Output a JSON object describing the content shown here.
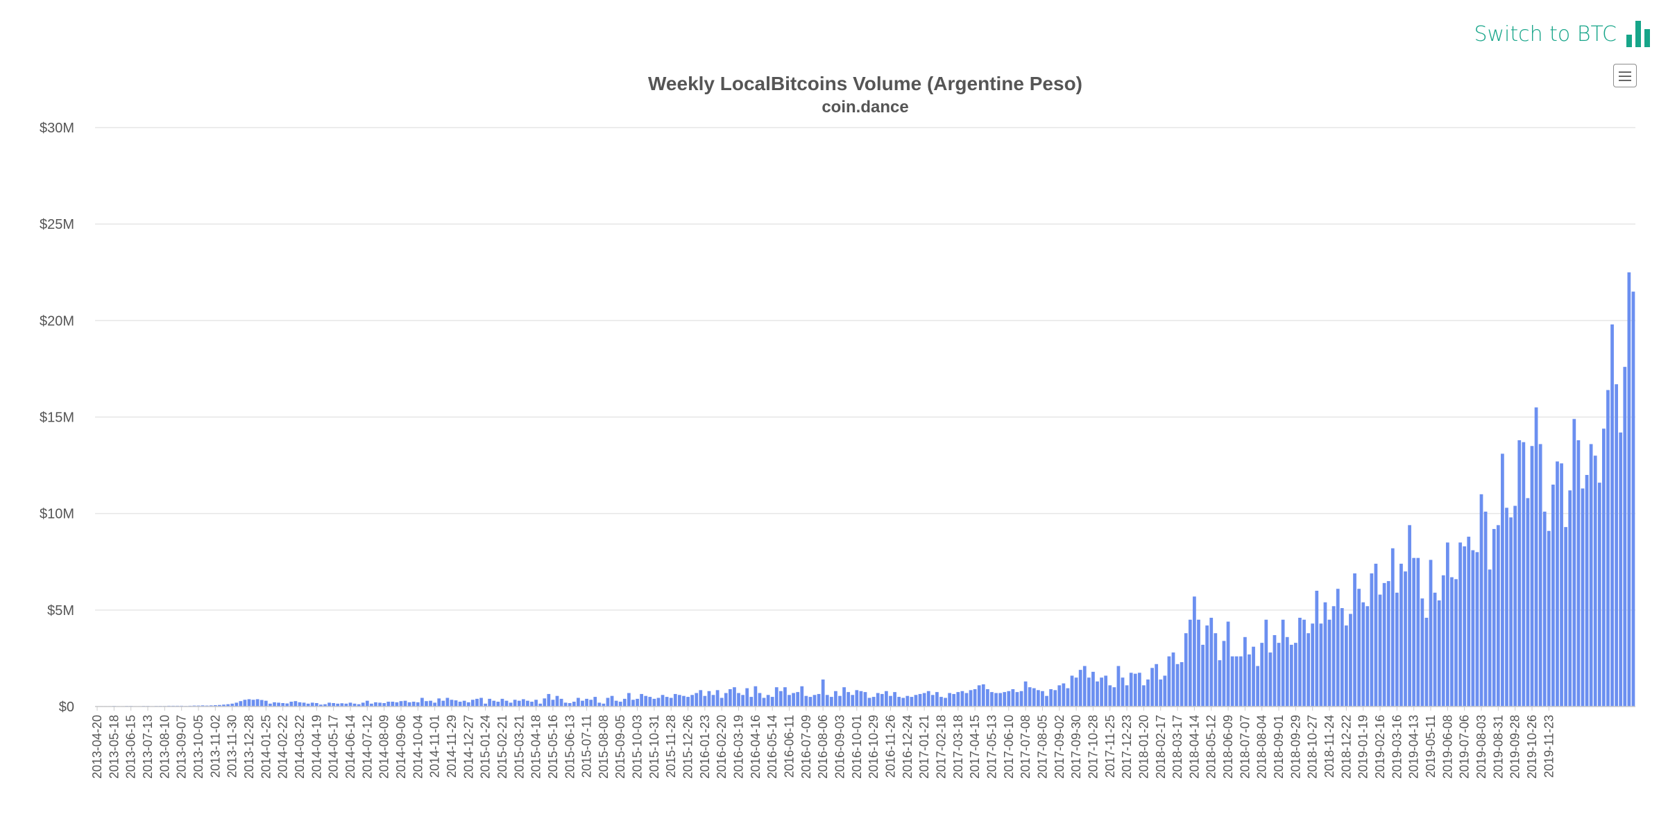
{
  "toolbar": {
    "switch_label": "Switch to BTC",
    "switch_icon": "bar-chart-icon",
    "menu_icon": "hamburger-menu-icon"
  },
  "colors": {
    "bar": "#6b8ff0",
    "accent": "#17a589"
  },
  "chart_data": {
    "type": "bar",
    "title": "Weekly LocalBitcoins Volume (Argentine Peso)",
    "subtitle": "coin.dance",
    "xlabel": "",
    "ylabel": "",
    "ylim": [
      0,
      30
    ],
    "y_unit": "M",
    "y_ticks": [
      "$0",
      "$5M",
      "$10M",
      "$15M",
      "$20M",
      "$25M",
      "$30M"
    ],
    "x_ticks": [
      "2013-04-20",
      "2013-05-18",
      "2013-06-15",
      "2013-07-13",
      "2013-08-10",
      "2013-09-07",
      "2013-10-05",
      "2013-11-02",
      "2013-11-30",
      "2013-12-28",
      "2014-01-25",
      "2014-02-22",
      "2014-03-22",
      "2014-04-19",
      "2014-05-17",
      "2014-06-14",
      "2014-07-12",
      "2014-08-09",
      "2014-09-06",
      "2014-10-04",
      "2014-11-01",
      "2014-11-29",
      "2014-12-27",
      "2015-01-24",
      "2015-02-21",
      "2015-03-21",
      "2015-04-18",
      "2015-05-16",
      "2015-06-13",
      "2015-07-11",
      "2015-08-08",
      "2015-09-05",
      "2015-10-03",
      "2015-10-31",
      "2015-11-28",
      "2015-12-26",
      "2016-01-23",
      "2016-02-20",
      "2016-03-19",
      "2016-04-16",
      "2016-05-14",
      "2016-06-11",
      "2016-07-09",
      "2016-08-06",
      "2016-09-03",
      "2016-10-01",
      "2016-10-29",
      "2016-11-26",
      "2016-12-24",
      "2017-01-21",
      "2017-02-18",
      "2017-03-18",
      "2017-04-15",
      "2017-05-13",
      "2017-06-10",
      "2017-07-08",
      "2017-08-05",
      "2017-09-02",
      "2017-09-30",
      "2017-10-28",
      "2017-11-25",
      "2017-12-23",
      "2018-01-20",
      "2018-02-17",
      "2018-03-17",
      "2018-04-14",
      "2018-05-12",
      "2018-06-09",
      "2018-07-07",
      "2018-08-04",
      "2018-09-01",
      "2018-09-29",
      "2018-10-27",
      "2018-11-24",
      "2018-12-22",
      "2019-01-19",
      "2019-02-16",
      "2019-03-16",
      "2019-04-13",
      "2019-05-11",
      "2019-06-08",
      "2019-07-06",
      "2019-08-03",
      "2019-08-31",
      "2019-09-28",
      "2019-10-26",
      "2019-11-23"
    ],
    "values": [
      0.02,
      0.02,
      0.02,
      0.02,
      0.03,
      0.02,
      0.02,
      0.03,
      0.03,
      0.02,
      0.02,
      0.03,
      0.03,
      0.02,
      0.03,
      0.03,
      0.03,
      0.04,
      0.04,
      0.04,
      0.04,
      0.03,
      0.04,
      0.05,
      0.05,
      0.06,
      0.05,
      0.06,
      0.07,
      0.08,
      0.1,
      0.12,
      0.15,
      0.2,
      0.28,
      0.35,
      0.38,
      0.35,
      0.38,
      0.34,
      0.3,
      0.15,
      0.22,
      0.2,
      0.18,
      0.16,
      0.25,
      0.28,
      0.22,
      0.2,
      0.15,
      0.2,
      0.18,
      0.1,
      0.12,
      0.2,
      0.18,
      0.15,
      0.17,
      0.15,
      0.2,
      0.15,
      0.12,
      0.2,
      0.3,
      0.15,
      0.22,
      0.2,
      0.18,
      0.25,
      0.25,
      0.22,
      0.28,
      0.3,
      0.22,
      0.25,
      0.22,
      0.45,
      0.28,
      0.3,
      0.2,
      0.42,
      0.3,
      0.45,
      0.35,
      0.32,
      0.25,
      0.3,
      0.22,
      0.35,
      0.4,
      0.45,
      0.15,
      0.4,
      0.3,
      0.25,
      0.4,
      0.3,
      0.2,
      0.35,
      0.3,
      0.38,
      0.3,
      0.25,
      0.35,
      0.15,
      0.42,
      0.65,
      0.35,
      0.55,
      0.4,
      0.2,
      0.18,
      0.25,
      0.45,
      0.3,
      0.4,
      0.35,
      0.5,
      0.2,
      0.15,
      0.45,
      0.55,
      0.3,
      0.25,
      0.4,
      0.7,
      0.35,
      0.4,
      0.65,
      0.55,
      0.5,
      0.4,
      0.45,
      0.6,
      0.5,
      0.45,
      0.65,
      0.6,
      0.55,
      0.5,
      0.6,
      0.7,
      0.85,
      0.55,
      0.8,
      0.6,
      0.85,
      0.45,
      0.7,
      0.9,
      1.0,
      0.7,
      0.6,
      0.95,
      0.5,
      1.05,
      0.7,
      0.45,
      0.6,
      0.5,
      1.0,
      0.8,
      1.0,
      0.6,
      0.7,
      0.75,
      1.05,
      0.55,
      0.5,
      0.6,
      0.65,
      1.4,
      0.6,
      0.5,
      0.8,
      0.55,
      1.0,
      0.75,
      0.6,
      0.85,
      0.8,
      0.75,
      0.45,
      0.5,
      0.7,
      0.65,
      0.8,
      0.55,
      0.75,
      0.5,
      0.45,
      0.55,
      0.5,
      0.6,
      0.65,
      0.7,
      0.8,
      0.6,
      0.75,
      0.5,
      0.45,
      0.7,
      0.65,
      0.75,
      0.8,
      0.7,
      0.85,
      0.9,
      1.1,
      1.15,
      0.9,
      0.75,
      0.7,
      0.7,
      0.75,
      0.8,
      0.9,
      0.75,
      0.8,
      1.3,
      1.0,
      0.95,
      0.85,
      0.8,
      0.55,
      0.9,
      0.85,
      1.1,
      1.2,
      0.95,
      1.6,
      1.5,
      1.9,
      2.1,
      1.5,
      1.8,
      1.3,
      1.5,
      1.6,
      1.1,
      1.0,
      2.1,
      1.5,
      1.1,
      1.75,
      1.7,
      1.75,
      1.1,
      1.4,
      2.0,
      2.2,
      1.4,
      1.6,
      2.6,
      2.8,
      2.2,
      2.3,
      3.8,
      4.5,
      5.7,
      4.5,
      3.2,
      4.2,
      4.6,
      3.8,
      2.4,
      3.4,
      4.4,
      2.6,
      2.6,
      2.6,
      3.6,
      2.7,
      3.1,
      2.1,
      3.3,
      4.5,
      2.8,
      3.7,
      3.3,
      4.5,
      3.6,
      3.2,
      3.3,
      4.6,
      4.5,
      3.8,
      4.3,
      6.0,
      4.3,
      5.4,
      4.5,
      5.2,
      6.1,
      5.1,
      4.2,
      4.8,
      6.9,
      6.1,
      5.4,
      5.2,
      6.9,
      7.4,
      5.8,
      6.4,
      6.5,
      8.2,
      5.9,
      7.4,
      7.0,
      9.4,
      7.7,
      7.7,
      5.6,
      4.6,
      7.6,
      5.9,
      5.5,
      6.8,
      8.5,
      6.7,
      6.6,
      8.5,
      8.3,
      8.8,
      8.1,
      8.0,
      11.0,
      10.1,
      7.1,
      9.2,
      9.4,
      13.1,
      10.3,
      9.8,
      10.4,
      13.8,
      13.7,
      10.8,
      13.5,
      15.5,
      13.6,
      10.1,
      9.1,
      11.5,
      12.7,
      12.6,
      9.3,
      11.2,
      14.9,
      13.8,
      11.3,
      12.0,
      13.6,
      13.0,
      11.6,
      14.4,
      16.4,
      19.8,
      16.7,
      14.2,
      17.6,
      22.5,
      21.5
    ]
  }
}
